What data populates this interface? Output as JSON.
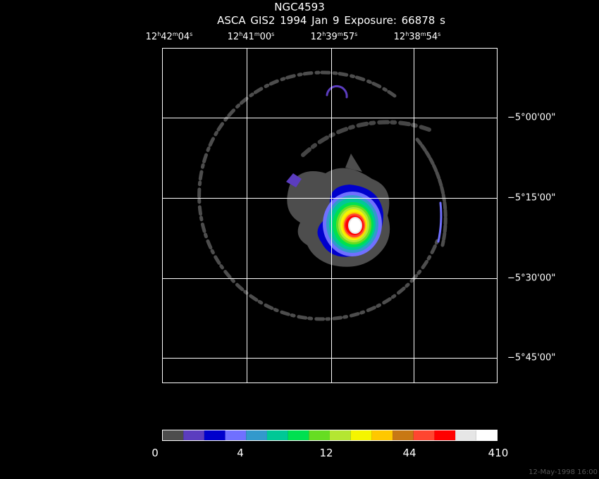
{
  "header": {
    "object": "NGC4593",
    "observation": "ASCA GIS2    1994 Jan  9    Exposure: 66878 s"
  },
  "ra_ticks": [
    {
      "h": "12",
      "m": "42",
      "s": "04"
    },
    {
      "h": "12",
      "m": "41",
      "s": "00"
    },
    {
      "h": "12",
      "m": "39",
      "s": "57"
    },
    {
      "h": "12",
      "m": "38",
      "s": "54"
    }
  ],
  "dec_ticks": [
    "−5°00'00\"",
    "−5°15'00\"",
    "−5°30'00\"",
    "−5°45'00\""
  ],
  "colorbar": {
    "colors": [
      "#4d4d4d",
      "#5b3dbf",
      "#0000cc",
      "#7070ff",
      "#3399cc",
      "#00c896",
      "#00e050",
      "#66dd22",
      "#b4e632",
      "#f5f500",
      "#ffc800",
      "#c87814",
      "#ff4630",
      "#ff0000",
      "#e6e6e6",
      "#ffffff"
    ],
    "labels": [
      "0",
      "4",
      "12",
      "44",
      "410"
    ]
  },
  "footer": {
    "date": "12-May-1998 16:00"
  }
}
